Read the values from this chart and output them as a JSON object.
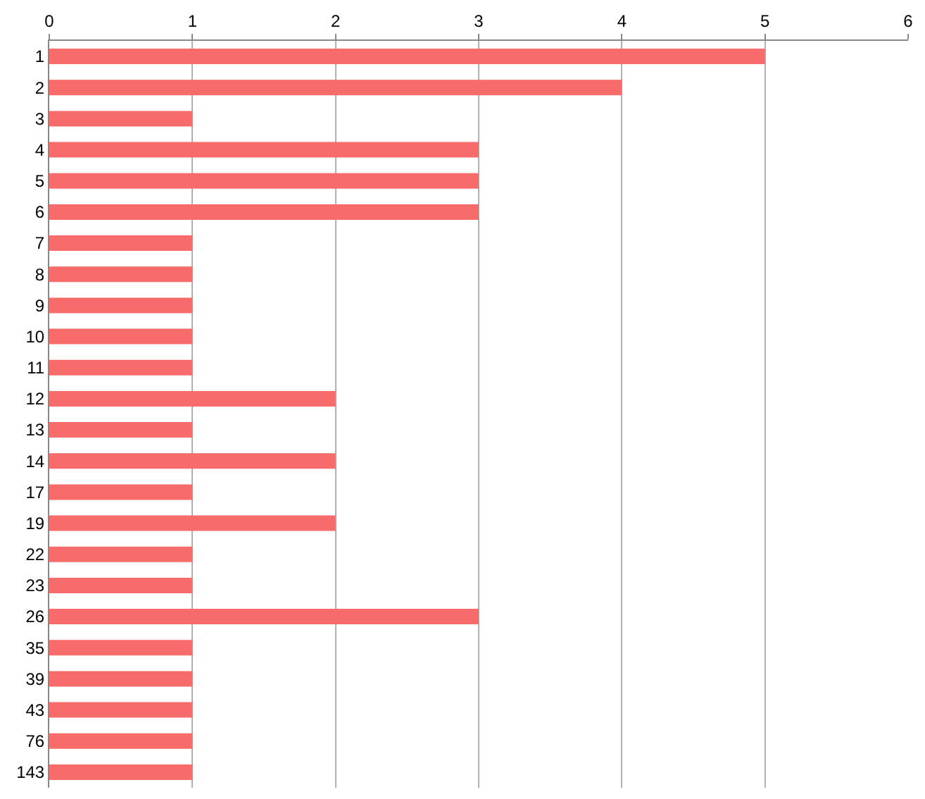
{
  "chart_data": {
    "type": "bar",
    "orientation": "horizontal",
    "categories": [
      "1",
      "2",
      "3",
      "4",
      "5",
      "6",
      "7",
      "8",
      "9",
      "10",
      "11",
      "12",
      "13",
      "14",
      "17",
      "19",
      "22",
      "23",
      "26",
      "35",
      "39",
      "43",
      "76",
      "143"
    ],
    "values": [
      5,
      4,
      1,
      3,
      3,
      3,
      1,
      1,
      1,
      1,
      1,
      2,
      1,
      2,
      1,
      2,
      1,
      1,
      3,
      1,
      1,
      1,
      1,
      1
    ],
    "color": "#f76b6b",
    "xlim": [
      0,
      6
    ],
    "xticks": [
      0,
      1,
      2,
      3,
      4,
      5,
      6
    ],
    "grid": "x"
  }
}
